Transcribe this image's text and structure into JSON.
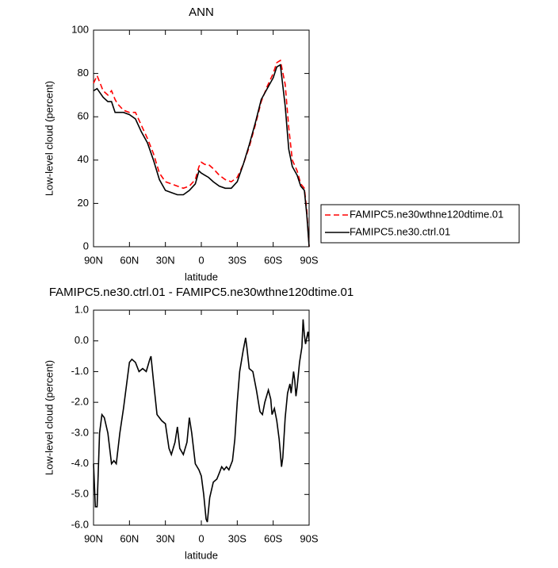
{
  "chart_data": [
    {
      "type": "line",
      "title": "ANN",
      "xlabel": "latitude",
      "ylabel": "Low-level cloud (percent)",
      "x": [
        90,
        87,
        82,
        78,
        75,
        72,
        70,
        65,
        60,
        55,
        50,
        45,
        40,
        35,
        30,
        25,
        20,
        15,
        10,
        5,
        2,
        0,
        -3,
        -6,
        -10,
        -15,
        -20,
        -25,
        -30,
        -35,
        -40,
        -45,
        -50,
        -55,
        -60,
        -63,
        -66,
        -70,
        -73,
        -76,
        -80,
        -83,
        -86,
        -88,
        -90
      ],
      "series": [
        {
          "name": "FAMIPC5.ne30wthne120dtime.01",
          "color": "#ff0000",
          "dashed": true,
          "values": [
            75.5,
            79,
            72,
            70,
            72,
            68,
            66,
            63,
            62,
            62,
            56,
            50,
            43,
            34,
            30,
            29,
            28,
            27,
            28,
            31,
            37,
            39,
            38,
            38,
            36,
            33,
            31,
            30,
            32,
            38,
            46,
            56,
            67,
            74,
            80,
            85,
            86,
            75,
            55,
            40,
            35,
            29,
            27,
            17,
            0
          ]
        },
        {
          "name": "FAMIPC5.ne30.ctrl.01",
          "color": "#000000",
          "dashed": false,
          "values": [
            72,
            73,
            69,
            67,
            67,
            62,
            62,
            62,
            61,
            59,
            53,
            48,
            40,
            31,
            26,
            25,
            24,
            24,
            26,
            29,
            35,
            34,
            33,
            32,
            30,
            28,
            27,
            27,
            30,
            38,
            47,
            57,
            68,
            73,
            78,
            83,
            84,
            65,
            45,
            37,
            33,
            28,
            26,
            15,
            0
          ]
        }
      ],
      "xlim": [
        90,
        -90
      ],
      "xticks": [
        {
          "value": 90,
          "label": "90N"
        },
        {
          "value": 60,
          "label": "60N"
        },
        {
          "value": 30,
          "label": "30N"
        },
        0,
        {
          "value": -30,
          "label": "30S"
        },
        {
          "value": -60,
          "label": "60S"
        },
        {
          "value": -90,
          "label": "90S"
        }
      ],
      "ylim": [
        0,
        100
      ],
      "yticks": [
        0,
        20,
        40,
        60,
        80,
        100
      ],
      "legend": "right"
    },
    {
      "type": "line",
      "title": "FAMIPC5.ne30.ctrl.01 - FAMIPC5.ne30wthne120dtime.01",
      "xlabel": "latitude",
      "ylabel": "Low-level cloud (percent)",
      "x": [
        90,
        88.5,
        87,
        85,
        83,
        81,
        78,
        75,
        73,
        71,
        68,
        65,
        62,
        60,
        58,
        55,
        52,
        49,
        46,
        43,
        42,
        40,
        37,
        33,
        30,
        27,
        25,
        22,
        20,
        18,
        15,
        12,
        10,
        8,
        5,
        2,
        0,
        -2,
        -4,
        -5,
        -7,
        -10,
        -13,
        -15,
        -17,
        -19,
        -21,
        -23,
        -26,
        -28,
        -30,
        -32,
        -35,
        -37,
        -38,
        -40,
        -43,
        -46,
        -49,
        -51,
        -53,
        -56,
        -58,
        -59,
        -61,
        -63,
        -65,
        -67,
        -68,
        -70,
        -72,
        -74,
        -75,
        -77,
        -78,
        -79,
        -80,
        -82,
        -84,
        -85,
        -86,
        -87,
        -89,
        -90
      ],
      "color": "#000000",
      "values": [
        -4.0,
        -5.4,
        -5.4,
        -3.0,
        -2.4,
        -2.5,
        -3.0,
        -4.0,
        -3.9,
        -4.0,
        -3.0,
        -2.2,
        -1.3,
        -0.7,
        -0.6,
        -0.7,
        -1.0,
        -0.9,
        -1.0,
        -0.6,
        -0.5,
        -1.3,
        -2.4,
        -2.6,
        -2.7,
        -3.5,
        -3.7,
        -3.3,
        -2.8,
        -3.5,
        -3.7,
        -3.3,
        -2.5,
        -3.0,
        -4.0,
        -4.2,
        -4.4,
        -5.0,
        -5.8,
        -5.9,
        -5.1,
        -4.6,
        -4.5,
        -4.3,
        -4.1,
        -4.2,
        -4.1,
        -4.2,
        -3.9,
        -3.2,
        -2.0,
        -1.0,
        -0.3,
        0.1,
        -0.2,
        -0.9,
        -1.0,
        -1.6,
        -2.3,
        -2.4,
        -2.0,
        -1.6,
        -1.9,
        -2.4,
        -2.2,
        -2.6,
        -3.2,
        -4.1,
        -3.8,
        -2.5,
        -1.7,
        -1.4,
        -1.7,
        -1.0,
        -1.3,
        -1.8,
        -1.5,
        -0.7,
        -0.2,
        0.7,
        0.2,
        -0.1,
        0.3,
        0.0
      ],
      "xlim": [
        90,
        -90
      ],
      "xticks": [
        {
          "value": 90,
          "label": "90N"
        },
        {
          "value": 60,
          "label": "60N"
        },
        {
          "value": 30,
          "label": "30N"
        },
        0,
        {
          "value": -30,
          "label": "30S"
        },
        {
          "value": -60,
          "label": "60S"
        },
        {
          "value": -90,
          "label": "90S"
        }
      ],
      "ylim": [
        -6,
        1
      ],
      "yticks": [
        {
          "value": 1,
          "label": "1.0"
        },
        {
          "value": 0,
          "label": "0.0"
        },
        {
          "value": -1,
          "label": "-1.0"
        },
        {
          "value": -2,
          "label": "-2.0"
        },
        {
          "value": -3,
          "label": "-3.0"
        },
        {
          "value": -4,
          "label": "-4.0"
        },
        {
          "value": -5,
          "label": "-5.0"
        },
        {
          "value": -6,
          "label": "-6.0"
        }
      ]
    }
  ]
}
